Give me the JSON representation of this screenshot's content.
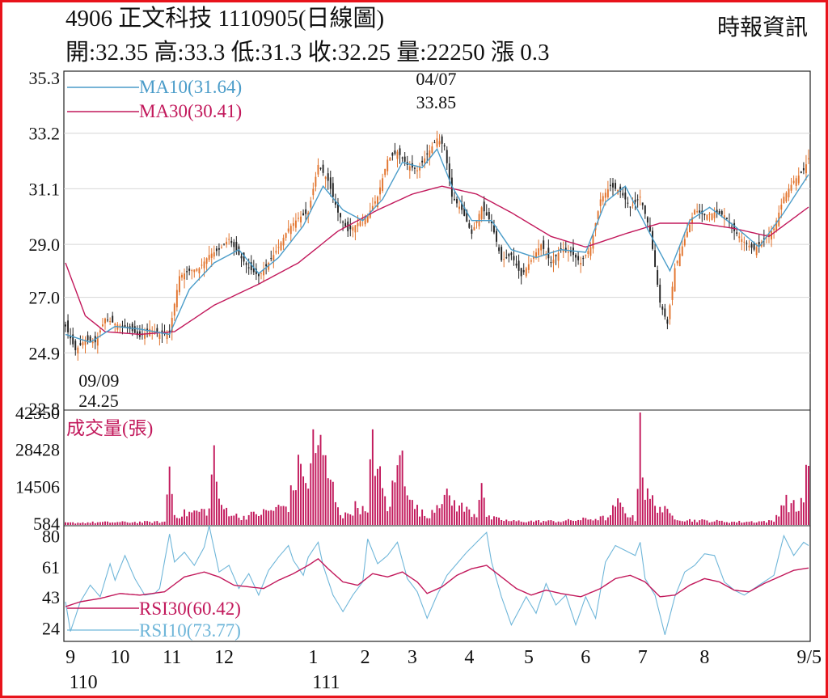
{
  "header": {
    "title": "4906  正文科技 1110905(日線圖)",
    "quote": "開:32.35 高:33.3 低:31.3 收:32.25 量:22250 漲 0.3",
    "source": "時報資訊"
  },
  "colors": {
    "border": "#e8131b",
    "ma10": "#4a9cc9",
    "ma30": "#c2185b",
    "up": "#e2732c",
    "down": "#222222",
    "volume": "#c2185b",
    "rsi10": "#6fb6d9",
    "rsi30": "#c2185b",
    "grid": "#d6d6d6"
  },
  "chart_data": [
    {
      "type": "candlestick",
      "ylim": [
        22.8,
        35.3
      ],
      "yticks": [
        "35.3",
        "33.2",
        "31.1",
        "29.0",
        "27.0",
        "24.9",
        "22.8"
      ],
      "yticks_values": [
        35.3,
        33.2,
        31.1,
        29.0,
        27.0,
        24.9,
        22.8
      ],
      "legend": [
        {
          "name": "MA10(31.64)",
          "color": "#4a9cc9"
        },
        {
          "name": "MA30(30.41)",
          "color": "#c2185b"
        }
      ],
      "annotations": [
        {
          "date": "04/07",
          "value": "33.85",
          "at_index": 149
        },
        {
          "date": "09/09",
          "value": "24.25",
          "at_index": 4
        }
      ],
      "keypoints_close": [
        [
          0,
          25.9
        ],
        [
          4,
          25.0
        ],
        [
          8,
          25.4
        ],
        [
          12,
          25.3
        ],
        [
          16,
          26.2
        ],
        [
          20,
          26.0
        ],
        [
          26,
          25.8
        ],
        [
          30,
          25.5
        ],
        [
          34,
          25.8
        ],
        [
          38,
          25.6
        ],
        [
          42,
          25.7
        ],
        [
          46,
          27.8
        ],
        [
          50,
          28.0
        ],
        [
          54,
          28.1
        ],
        [
          58,
          28.6
        ],
        [
          62,
          28.8
        ],
        [
          66,
          29.2
        ],
        [
          70,
          28.6
        ],
        [
          74,
          28.1
        ],
        [
          78,
          27.8
        ],
        [
          82,
          28.3
        ],
        [
          86,
          28.9
        ],
        [
          90,
          29.6
        ],
        [
          94,
          30.0
        ],
        [
          98,
          30.2
        ],
        [
          102,
          32.0
        ],
        [
          106,
          31.4
        ],
        [
          110,
          30.2
        ],
        [
          114,
          29.5
        ],
        [
          118,
          29.8
        ],
        [
          122,
          30.1
        ],
        [
          126,
          30.8
        ],
        [
          130,
          32.2
        ],
        [
          134,
          32.5
        ],
        [
          138,
          32.0
        ],
        [
          142,
          31.8
        ],
        [
          146,
          32.4
        ],
        [
          150,
          33.0
        ],
        [
          153,
          32.7
        ],
        [
          156,
          30.8
        ],
        [
          160,
          30.3
        ],
        [
          164,
          29.4
        ],
        [
          168,
          30.4
        ],
        [
          172,
          29.8
        ],
        [
          176,
          28.4
        ],
        [
          180,
          28.6
        ],
        [
          184,
          27.8
        ],
        [
          188,
          28.4
        ],
        [
          192,
          29.0
        ],
        [
          196,
          28.3
        ],
        [
          200,
          28.8
        ],
        [
          204,
          28.7
        ],
        [
          208,
          28.3
        ],
        [
          212,
          28.9
        ],
        [
          216,
          30.7
        ],
        [
          220,
          31.2
        ],
        [
          224,
          31.0
        ],
        [
          228,
          30.4
        ],
        [
          232,
          30.8
        ],
        [
          236,
          29.5
        ],
        [
          240,
          26.8
        ],
        [
          243,
          26.0
        ],
        [
          246,
          28.1
        ],
        [
          250,
          29.2
        ],
        [
          254,
          30.3
        ],
        [
          258,
          30.1
        ],
        [
          262,
          30.2
        ],
        [
          266,
          30.1
        ],
        [
          270,
          29.5
        ],
        [
          274,
          29.1
        ],
        [
          278,
          28.8
        ],
        [
          282,
          29.2
        ],
        [
          286,
          29.6
        ],
        [
          290,
          30.8
        ],
        [
          294,
          31.4
        ],
        [
          298,
          31.8
        ],
        [
          300,
          32.25
        ]
      ],
      "keypoints_ma10": [
        [
          0,
          25.6
        ],
        [
          10,
          25.3
        ],
        [
          20,
          25.9
        ],
        [
          30,
          25.8
        ],
        [
          42,
          25.6
        ],
        [
          50,
          27.3
        ],
        [
          60,
          28.3
        ],
        [
          70,
          28.8
        ],
        [
          78,
          27.9
        ],
        [
          86,
          28.5
        ],
        [
          96,
          29.7
        ],
        [
          104,
          31.2
        ],
        [
          112,
          30.3
        ],
        [
          120,
          29.9
        ],
        [
          128,
          30.7
        ],
        [
          136,
          32.1
        ],
        [
          144,
          31.9
        ],
        [
          150,
          32.6
        ],
        [
          156,
          31.2
        ],
        [
          164,
          29.9
        ],
        [
          172,
          29.9
        ],
        [
          180,
          28.8
        ],
        [
          190,
          28.5
        ],
        [
          200,
          28.8
        ],
        [
          210,
          28.7
        ],
        [
          218,
          30.6
        ],
        [
          226,
          31.2
        ],
        [
          236,
          29.4
        ],
        [
          244,
          28.0
        ],
        [
          252,
          29.9
        ],
        [
          260,
          30.4
        ],
        [
          270,
          29.7
        ],
        [
          280,
          28.9
        ],
        [
          290,
          30.2
        ],
        [
          300,
          31.64
        ]
      ],
      "keypoints_ma30": [
        [
          0,
          28.3
        ],
        [
          8,
          26.3
        ],
        [
          16,
          25.7
        ],
        [
          30,
          25.6
        ],
        [
          44,
          25.7
        ],
        [
          60,
          26.7
        ],
        [
          78,
          27.5
        ],
        [
          94,
          28.3
        ],
        [
          110,
          29.5
        ],
        [
          126,
          30.3
        ],
        [
          140,
          30.9
        ],
        [
          152,
          31.2
        ],
        [
          166,
          30.9
        ],
        [
          180,
          30.2
        ],
        [
          196,
          29.3
        ],
        [
          210,
          28.9
        ],
        [
          226,
          29.4
        ],
        [
          240,
          29.8
        ],
        [
          256,
          29.8
        ],
        [
          270,
          29.6
        ],
        [
          284,
          29.3
        ],
        [
          300,
          30.41
        ]
      ],
      "n": 301
    },
    {
      "type": "bar",
      "title": "成交量(張)",
      "ylim": [
        0,
        42350
      ],
      "yticks": [
        "42350",
        "28428",
        "14506",
        "584"
      ],
      "yticks_values": [
        42350,
        28428,
        14506,
        584
      ],
      "keypoints_volume": [
        [
          0,
          800
        ],
        [
          10,
          1000
        ],
        [
          40,
          1200
        ],
        [
          42,
          22000
        ],
        [
          44,
          4000
        ],
        [
          58,
          6000
        ],
        [
          60,
          30000
        ],
        [
          62,
          8000
        ],
        [
          70,
          3000
        ],
        [
          80,
          5000
        ],
        [
          90,
          8000
        ],
        [
          92,
          16000
        ],
        [
          96,
          26000
        ],
        [
          98,
          12000
        ],
        [
          100,
          36000
        ],
        [
          102,
          32000
        ],
        [
          106,
          20000
        ],
        [
          112,
          3000
        ],
        [
          118,
          8000
        ],
        [
          122,
          4000
        ],
        [
          124,
          36000
        ],
        [
          126,
          22000
        ],
        [
          130,
          6000
        ],
        [
          134,
          22000
        ],
        [
          136,
          28000
        ],
        [
          140,
          8000
        ],
        [
          146,
          3000
        ],
        [
          152,
          12000
        ],
        [
          160,
          7000
        ],
        [
          166,
          4000
        ],
        [
          168,
          22000
        ],
        [
          170,
          3000
        ],
        [
          180,
          1500
        ],
        [
          200,
          1500
        ],
        [
          220,
          3000
        ],
        [
          222,
          9000
        ],
        [
          230,
          2000
        ],
        [
          232,
          42350
        ],
        [
          234,
          12000
        ],
        [
          244,
          4000
        ],
        [
          250,
          2000
        ],
        [
          270,
          1200
        ],
        [
          286,
          1500
        ],
        [
          290,
          10000
        ],
        [
          296,
          6000
        ],
        [
          300,
          22250
        ]
      ]
    },
    {
      "type": "line",
      "ylim": [
        16,
        86
      ],
      "yticks": [
        "80",
        "61",
        "43",
        "24"
      ],
      "yticks_values": [
        80,
        61,
        43,
        24
      ],
      "legend": [
        {
          "name": "RSI30(60.42)",
          "color": "#c2185b"
        },
        {
          "name": "RSI10(73.77)",
          "color": "#6fb6d9"
        }
      ],
      "keypoints_rsi10": [
        [
          0,
          40
        ],
        [
          2,
          22
        ],
        [
          6,
          40
        ],
        [
          10,
          50
        ],
        [
          14,
          43
        ],
        [
          18,
          63
        ],
        [
          20,
          53
        ],
        [
          24,
          68
        ],
        [
          28,
          54
        ],
        [
          32,
          44
        ],
        [
          36,
          45
        ],
        [
          38,
          48
        ],
        [
          42,
          81
        ],
        [
          44,
          64
        ],
        [
          48,
          70
        ],
        [
          52,
          62
        ],
        [
          56,
          73
        ],
        [
          58,
          86
        ],
        [
          62,
          58
        ],
        [
          66,
          62
        ],
        [
          70,
          48
        ],
        [
          74,
          57
        ],
        [
          78,
          44
        ],
        [
          82,
          59
        ],
        [
          86,
          67
        ],
        [
          90,
          74
        ],
        [
          92,
          65
        ],
        [
          96,
          56
        ],
        [
          98,
          67
        ],
        [
          102,
          76
        ],
        [
          104,
          62
        ],
        [
          108,
          44
        ],
        [
          112,
          34
        ],
        [
          116,
          44
        ],
        [
          120,
          52
        ],
        [
          122,
          78
        ],
        [
          126,
          63
        ],
        [
          130,
          68
        ],
        [
          134,
          76
        ],
        [
          138,
          54
        ],
        [
          142,
          46
        ],
        [
          146,
          30
        ],
        [
          150,
          44
        ],
        [
          154,
          56
        ],
        [
          158,
          63
        ],
        [
          162,
          70
        ],
        [
          166,
          76
        ],
        [
          170,
          82
        ],
        [
          172,
          64
        ],
        [
          176,
          43
        ],
        [
          180,
          26
        ],
        [
          186,
          43
        ],
        [
          190,
          33
        ],
        [
          194,
          51
        ],
        [
          198,
          38
        ],
        [
          202,
          44
        ],
        [
          206,
          26
        ],
        [
          210,
          43
        ],
        [
          214,
          30
        ],
        [
          218,
          64
        ],
        [
          222,
          74
        ],
        [
          226,
          71
        ],
        [
          230,
          68
        ],
        [
          232,
          76
        ],
        [
          234,
          54
        ],
        [
          238,
          44
        ],
        [
          242,
          20
        ],
        [
          246,
          43
        ],
        [
          250,
          58
        ],
        [
          254,
          62
        ],
        [
          258,
          69
        ],
        [
          262,
          68
        ],
        [
          266,
          52
        ],
        [
          270,
          47
        ],
        [
          274,
          44
        ],
        [
          278,
          48
        ],
        [
          282,
          52
        ],
        [
          286,
          56
        ],
        [
          290,
          80
        ],
        [
          294,
          68
        ],
        [
          298,
          76
        ],
        [
          300,
          74
        ]
      ],
      "keypoints_rsi30": [
        [
          0,
          37
        ],
        [
          6,
          40
        ],
        [
          14,
          42
        ],
        [
          22,
          45
        ],
        [
          30,
          44
        ],
        [
          40,
          46
        ],
        [
          48,
          55
        ],
        [
          56,
          58
        ],
        [
          62,
          55
        ],
        [
          68,
          50
        ],
        [
          74,
          49
        ],
        [
          80,
          48
        ],
        [
          86,
          53
        ],
        [
          92,
          57
        ],
        [
          98,
          62
        ],
        [
          102,
          66
        ],
        [
          106,
          60
        ],
        [
          112,
          52
        ],
        [
          118,
          50
        ],
        [
          124,
          57
        ],
        [
          130,
          55
        ],
        [
          136,
          58
        ],
        [
          142,
          52
        ],
        [
          146,
          45
        ],
        [
          152,
          49
        ],
        [
          158,
          56
        ],
        [
          164,
          60
        ],
        [
          170,
          62
        ],
        [
          176,
          55
        ],
        [
          182,
          48
        ],
        [
          188,
          44
        ],
        [
          194,
          47
        ],
        [
          200,
          45
        ],
        [
          208,
          43
        ],
        [
          216,
          48
        ],
        [
          222,
          54
        ],
        [
          228,
          56
        ],
        [
          234,
          52
        ],
        [
          240,
          43
        ],
        [
          246,
          44
        ],
        [
          252,
          50
        ],
        [
          258,
          54
        ],
        [
          264,
          52
        ],
        [
          270,
          47
        ],
        [
          276,
          46
        ],
        [
          282,
          51
        ],
        [
          288,
          55
        ],
        [
          294,
          59
        ],
        [
          300,
          60.42
        ]
      ]
    }
  ],
  "x_axis": {
    "labels": [
      {
        "text": "9",
        "at_index": 2
      },
      {
        "text": "10",
        "at_index": 22
      },
      {
        "text": "11",
        "at_index": 43
      },
      {
        "text": "12",
        "at_index": 64
      },
      {
        "text": "1",
        "at_index": 100
      },
      {
        "text": "2",
        "at_index": 121
      },
      {
        "text": "3",
        "at_index": 140
      },
      {
        "text": "4",
        "at_index": 163
      },
      {
        "text": "5",
        "at_index": 187
      },
      {
        "text": "6",
        "at_index": 210
      },
      {
        "text": "7",
        "at_index": 233
      },
      {
        "text": "8",
        "at_index": 258
      },
      {
        "text": "9/5",
        "at_index": 297
      }
    ],
    "year_labels": [
      {
        "text": "110",
        "at_index": 2
      },
      {
        "text": "111",
        "at_index": 100
      }
    ]
  }
}
